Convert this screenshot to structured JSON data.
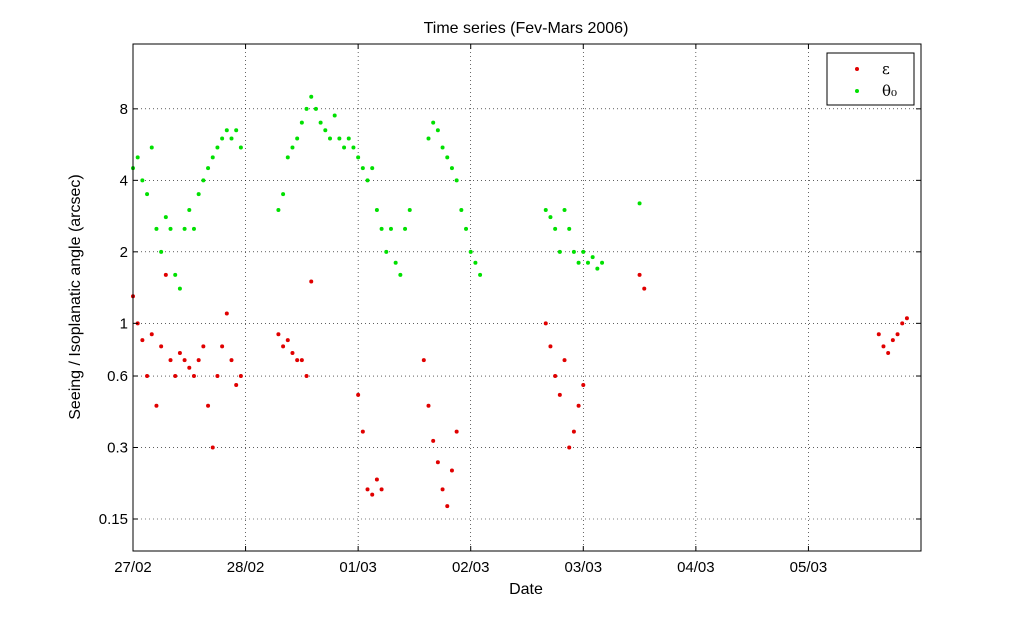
{
  "chart_data": {
    "type": "scatter",
    "title": "Time series (Fev-Mars 2006)",
    "xlabel": "Date",
    "ylabel": "Seeing / Isoplanatic angle (arcsec)",
    "yscale": "log",
    "ylim": [
      0.11,
      15
    ],
    "xlim": [
      "27/02 00:00",
      "06/03 00:00"
    ],
    "x_ticks": [
      "27/02",
      "28/02",
      "01/03",
      "02/03",
      "03/03",
      "04/03",
      "05/03"
    ],
    "y_ticks": [
      0.15,
      0.3,
      0.6,
      1,
      2,
      4,
      8
    ],
    "y_tick_labels": [
      "0.15",
      "0.3",
      "0.6",
      "1",
      "2",
      "4",
      "8"
    ],
    "grid": true,
    "legend_position": "top-right",
    "series": [
      {
        "name": "ε",
        "color": "#e00000",
        "points": [
          [
            "27/02 00:00",
            1.3
          ],
          [
            "27/02 01:00",
            1.0
          ],
          [
            "27/02 02:00",
            0.85
          ],
          [
            "27/02 03:00",
            0.6
          ],
          [
            "27/02 04:00",
            0.9
          ],
          [
            "27/02 05:00",
            0.45
          ],
          [
            "27/02 06:00",
            0.8
          ],
          [
            "27/02 07:00",
            1.6
          ],
          [
            "27/02 08:00",
            0.7
          ],
          [
            "27/02 09:00",
            0.6
          ],
          [
            "27/02 10:00",
            0.75
          ],
          [
            "27/02 11:00",
            0.7
          ],
          [
            "27/02 12:00",
            0.65
          ],
          [
            "27/02 13:00",
            0.6
          ],
          [
            "27/02 14:00",
            0.7
          ],
          [
            "27/02 15:00",
            0.8
          ],
          [
            "27/02 16:00",
            0.45
          ],
          [
            "27/02 17:00",
            0.3
          ],
          [
            "27/02 18:00",
            0.6
          ],
          [
            "27/02 19:00",
            0.8
          ],
          [
            "27/02 20:00",
            1.1
          ],
          [
            "27/02 21:00",
            0.7
          ],
          [
            "27/02 22:00",
            0.55
          ],
          [
            "27/02 23:00",
            0.6
          ],
          [
            "28/02 07:00",
            0.9
          ],
          [
            "28/02 08:00",
            0.8
          ],
          [
            "28/02 09:00",
            0.85
          ],
          [
            "28/02 10:00",
            0.75
          ],
          [
            "28/02 11:00",
            0.7
          ],
          [
            "28/02 12:00",
            0.7
          ],
          [
            "28/02 13:00",
            0.6
          ],
          [
            "28/02 14:00",
            1.5
          ],
          [
            "01/03 00:00",
            0.5
          ],
          [
            "01/03 01:00",
            0.35
          ],
          [
            "01/03 02:00",
            0.2
          ],
          [
            "01/03 03:00",
            0.19
          ],
          [
            "01/03 04:00",
            0.22
          ],
          [
            "01/03 05:00",
            0.2
          ],
          [
            "01/03 14:00",
            0.7
          ],
          [
            "01/03 15:00",
            0.45
          ],
          [
            "01/03 16:00",
            0.32
          ],
          [
            "01/03 17:00",
            0.26
          ],
          [
            "01/03 18:00",
            0.2
          ],
          [
            "01/03 19:00",
            0.17
          ],
          [
            "01/03 20:00",
            0.24
          ],
          [
            "01/03 21:00",
            0.35
          ],
          [
            "02/03 16:00",
            1.0
          ],
          [
            "02/03 17:00",
            0.8
          ],
          [
            "02/03 18:00",
            0.6
          ],
          [
            "02/03 19:00",
            0.5
          ],
          [
            "02/03 20:00",
            0.7
          ],
          [
            "02/03 21:00",
            0.3
          ],
          [
            "02/03 22:00",
            0.35
          ],
          [
            "02/03 23:00",
            0.45
          ],
          [
            "03/03 00:00",
            0.55
          ],
          [
            "03/03 12:00",
            1.6
          ],
          [
            "03/03 13:00",
            1.4
          ],
          [
            "05/03 15:00",
            0.9
          ],
          [
            "05/03 16:00",
            0.8
          ],
          [
            "05/03 17:00",
            0.75
          ],
          [
            "05/03 18:00",
            0.85
          ],
          [
            "05/03 19:00",
            0.9
          ],
          [
            "05/03 20:00",
            1.0
          ],
          [
            "05/03 21:00",
            1.05
          ]
        ]
      },
      {
        "name": "θ₀",
        "color": "#00e000",
        "points": [
          [
            "27/02 00:00",
            4.5
          ],
          [
            "27/02 01:00",
            5.0
          ],
          [
            "27/02 02:00",
            4.0
          ],
          [
            "27/02 03:00",
            3.5
          ],
          [
            "27/02 04:00",
            5.5
          ],
          [
            "27/02 05:00",
            2.5
          ],
          [
            "27/02 06:00",
            2.0
          ],
          [
            "27/02 07:00",
            2.8
          ],
          [
            "27/02 08:00",
            2.5
          ],
          [
            "27/02 09:00",
            1.6
          ],
          [
            "27/02 10:00",
            1.4
          ],
          [
            "27/02 11:00",
            2.5
          ],
          [
            "27/02 12:00",
            3.0
          ],
          [
            "27/02 13:00",
            2.5
          ],
          [
            "27/02 14:00",
            3.5
          ],
          [
            "27/02 15:00",
            4.0
          ],
          [
            "27/02 16:00",
            4.5
          ],
          [
            "27/02 17:00",
            5.0
          ],
          [
            "27/02 18:00",
            5.5
          ],
          [
            "27/02 19:00",
            6.0
          ],
          [
            "27/02 20:00",
            6.5
          ],
          [
            "27/02 21:00",
            6.0
          ],
          [
            "27/02 22:00",
            6.5
          ],
          [
            "27/02 23:00",
            5.5
          ],
          [
            "28/02 07:00",
            3.0
          ],
          [
            "28/02 08:00",
            3.5
          ],
          [
            "28/02 09:00",
            5.0
          ],
          [
            "28/02 10:00",
            5.5
          ],
          [
            "28/02 11:00",
            6.0
          ],
          [
            "28/02 12:00",
            7.0
          ],
          [
            "28/02 13:00",
            8.0
          ],
          [
            "28/02 14:00",
            9.0
          ],
          [
            "28/02 15:00",
            8.0
          ],
          [
            "28/02 16:00",
            7.0
          ],
          [
            "28/02 17:00",
            6.5
          ],
          [
            "28/02 18:00",
            6.0
          ],
          [
            "28/02 19:00",
            7.5
          ],
          [
            "28/02 20:00",
            6.0
          ],
          [
            "28/02 21:00",
            5.5
          ],
          [
            "28/02 22:00",
            6.0
          ],
          [
            "28/02 23:00",
            5.5
          ],
          [
            "01/03 00:00",
            5.0
          ],
          [
            "01/03 01:00",
            4.5
          ],
          [
            "01/03 02:00",
            4.0
          ],
          [
            "01/03 03:00",
            4.5
          ],
          [
            "01/03 04:00",
            3.0
          ],
          [
            "01/03 05:00",
            2.5
          ],
          [
            "01/03 06:00",
            2.0
          ],
          [
            "01/03 07:00",
            2.5
          ],
          [
            "01/03 08:00",
            1.8
          ],
          [
            "01/03 09:00",
            1.6
          ],
          [
            "01/03 10:00",
            2.5
          ],
          [
            "01/03 11:00",
            3.0
          ],
          [
            "01/03 15:00",
            6.0
          ],
          [
            "01/03 16:00",
            7.0
          ],
          [
            "01/03 17:00",
            6.5
          ],
          [
            "01/03 18:00",
            5.5
          ],
          [
            "01/03 19:00",
            5.0
          ],
          [
            "01/03 20:00",
            4.5
          ],
          [
            "01/03 21:00",
            4.0
          ],
          [
            "01/03 22:00",
            3.0
          ],
          [
            "01/03 23:00",
            2.5
          ],
          [
            "02/03 00:00",
            2.0
          ],
          [
            "02/03 01:00",
            1.8
          ],
          [
            "02/03 02:00",
            1.6
          ],
          [
            "02/03 16:00",
            3.0
          ],
          [
            "02/03 17:00",
            2.8
          ],
          [
            "02/03 18:00",
            2.5
          ],
          [
            "02/03 19:00",
            2.0
          ],
          [
            "02/03 20:00",
            3.0
          ],
          [
            "02/03 21:00",
            2.5
          ],
          [
            "02/03 22:00",
            2.0
          ],
          [
            "02/03 23:00",
            1.8
          ],
          [
            "03/03 00:00",
            2.0
          ],
          [
            "03/03 01:00",
            1.8
          ],
          [
            "03/03 02:00",
            1.9
          ],
          [
            "03/03 03:00",
            1.7
          ],
          [
            "03/03 04:00",
            1.8
          ],
          [
            "03/03 12:00",
            3.2
          ]
        ]
      }
    ]
  }
}
